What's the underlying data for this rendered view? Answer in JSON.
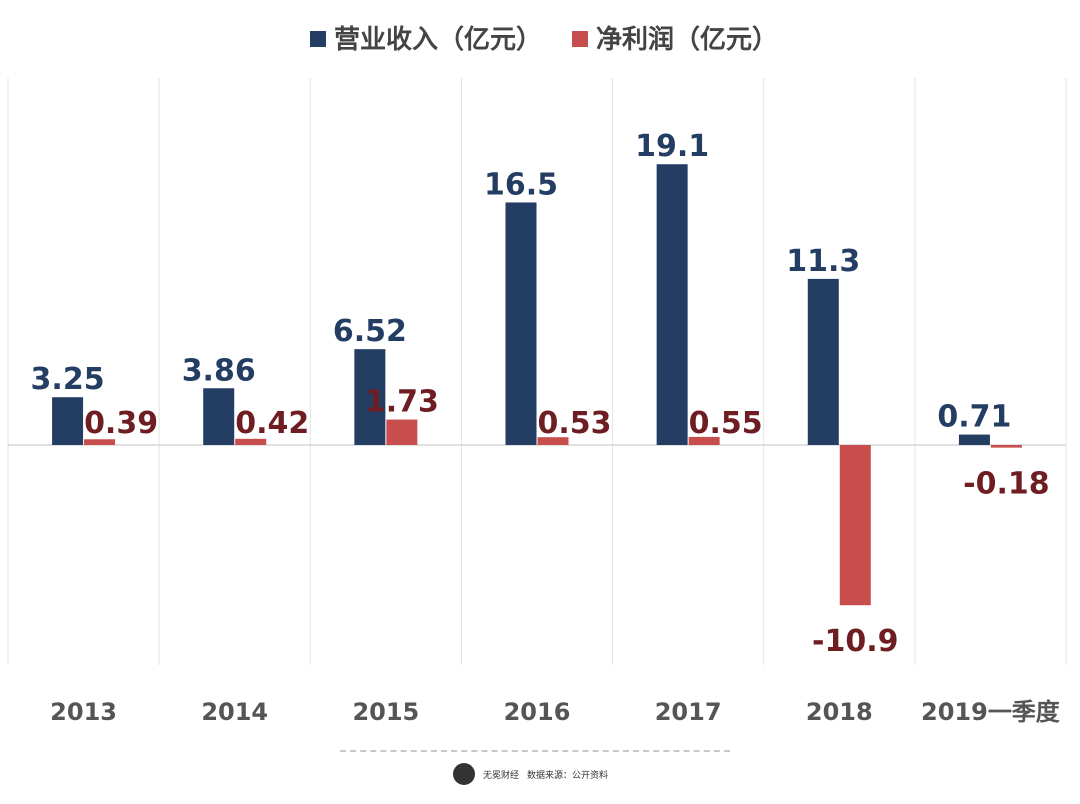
{
  "chart_data": {
    "type": "bar",
    "categories": [
      "2013",
      "2014",
      "2015",
      "2016",
      "2017",
      "2018",
      "2019一季度"
    ],
    "series": [
      {
        "name": "营业收入（亿元）",
        "color": "#233d63",
        "values": [
          3.25,
          3.86,
          6.52,
          16.5,
          19.1,
          11.3,
          0.71
        ],
        "labels": [
          "3.25",
          "3.86",
          "6.52",
          "16.5",
          "19.1",
          "11.3",
          "0.71"
        ]
      },
      {
        "name": "净利润（亿元）",
        "color": "#c84e4e",
        "values": [
          0.39,
          0.42,
          1.73,
          0.53,
          0.55,
          -10.9,
          -0.18
        ],
        "labels": [
          "0.39",
          "0.42",
          "1.73",
          "0.53",
          "0.55",
          "-10.9",
          "-0.18"
        ]
      }
    ],
    "label_colors": [
      "#233d63",
      "#6e1e22"
    ],
    "ylim": [
      -15,
      25
    ],
    "grid": "vertical separators between categories",
    "legend": "top-center"
  },
  "footer": {
    "logo_text": "无冕财经",
    "source": "数据来源：公开资料"
  }
}
